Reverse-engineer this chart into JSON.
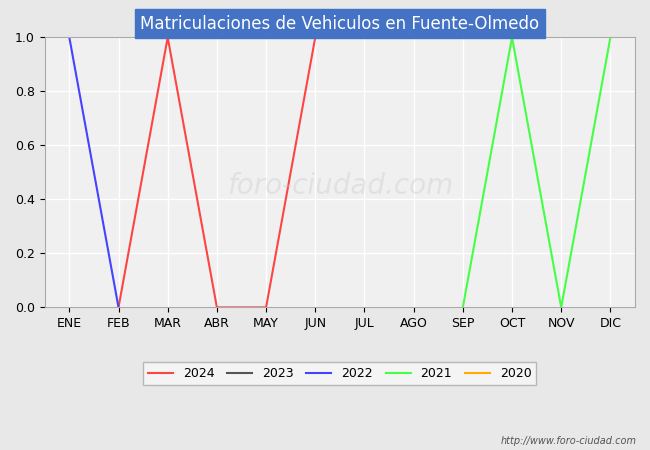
{
  "title": "Matriculaciones de Vehiculos en Fuente-Olmedo",
  "title_bg_color": "#4472c4",
  "title_text_color": "#ffffff",
  "x_labels": [
    "ENE",
    "FEB",
    "MAR",
    "ABR",
    "MAY",
    "JUN",
    "JUL",
    "AGO",
    "SEP",
    "OCT",
    "NOV",
    "DIC"
  ],
  "ylim": [
    0.0,
    1.0
  ],
  "yticks": [
    0.0,
    0.2,
    0.4,
    0.6,
    0.8,
    1.0
  ],
  "series": {
    "2024": {
      "color": "#ff4444",
      "x": [
        1,
        2,
        3,
        4,
        5
      ],
      "y": [
        0,
        1,
        0,
        0,
        1
      ]
    },
    "2023": {
      "color": "#555555",
      "x": [],
      "y": []
    },
    "2022": {
      "color": "#4444ff",
      "x": [
        0,
        1
      ],
      "y": [
        1,
        0
      ]
    },
    "2021": {
      "color": "#44ff44",
      "x": [
        8,
        9,
        10,
        11
      ],
      "y": [
        0,
        1,
        0,
        1
      ]
    },
    "2020": {
      "color": "#ffaa00",
      "x": [],
      "y": []
    }
  },
  "legend_order": [
    "2024",
    "2023",
    "2022",
    "2021",
    "2020"
  ],
  "watermark": "http://www.foro-ciudad.com",
  "background_color": "#e8e8e8",
  "plot_bg_color": "#f0f0f0",
  "grid_color": "#ffffff",
  "url_text": "http://www.foro-ciudad.com"
}
